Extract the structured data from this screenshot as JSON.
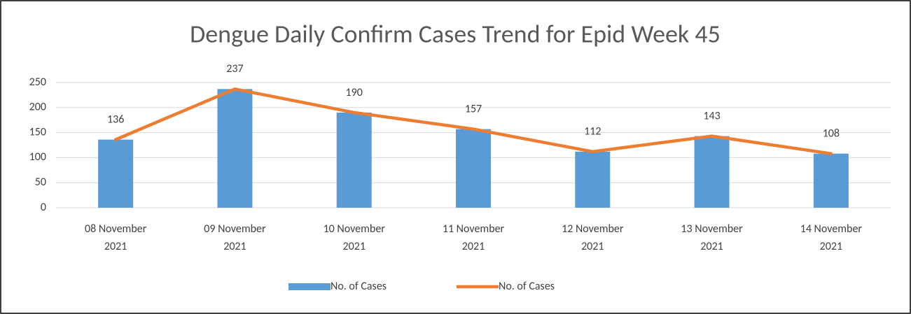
{
  "chart_data": {
    "type": "combo",
    "title": "Dengue Daily Confirm Cases Trend for Epid Week 45",
    "categories": [
      "08 November 2021",
      "09 November 2021",
      "10 November 2021",
      "11 November 2021",
      "12 November 2021",
      "13 November 2021",
      "14 November 2021"
    ],
    "series": [
      {
        "name": "No. of Cases",
        "type": "bar",
        "color": "#5b9bd5",
        "values": [
          136,
          237,
          190,
          157,
          112,
          143,
          108
        ]
      },
      {
        "name": "No. of Cases",
        "type": "line",
        "color": "#ed7d31",
        "values": [
          136,
          237,
          190,
          157,
          112,
          143,
          108
        ]
      }
    ],
    "ylim": [
      0,
      250
    ],
    "yticks": [
      0,
      50,
      100,
      150,
      200,
      250
    ],
    "grid": true,
    "legend": "bottom"
  }
}
